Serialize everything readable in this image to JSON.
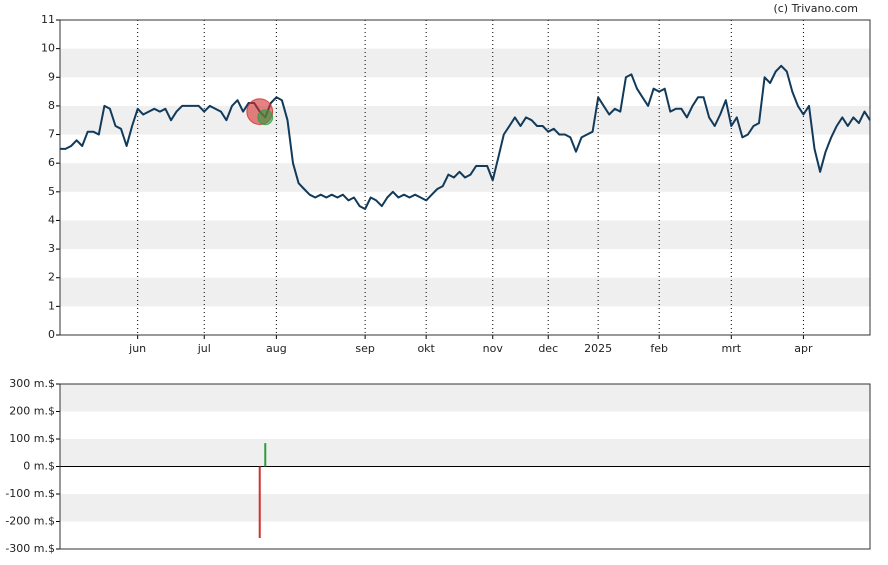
{
  "source": "(c) Trivano.com",
  "chart_data": [
    {
      "type": "line",
      "series": [
        {
          "color": "#123a5a",
          "values": [
            6.5,
            6.5,
            6.6,
            6.8,
            6.6,
            7.1,
            7.1,
            7.0,
            8.0,
            7.9,
            7.3,
            7.2,
            6.6,
            7.3,
            7.9,
            7.7,
            7.8,
            7.9,
            7.8,
            7.9,
            7.5,
            7.8,
            8.0,
            8.0,
            8.0,
            8.0,
            7.8,
            8.0,
            7.9,
            7.8,
            7.5,
            8.0,
            8.2,
            7.8,
            8.1,
            8.1,
            7.8,
            7.6,
            8.1,
            8.3,
            8.2,
            7.5,
            6.0,
            5.3,
            5.1,
            4.9,
            4.8,
            4.9,
            4.8,
            4.9,
            4.8,
            4.9,
            4.7,
            4.8,
            4.5,
            4.4,
            4.8,
            4.7,
            4.5,
            4.8,
            5.0,
            4.8,
            4.9,
            4.8,
            4.9,
            4.8,
            4.7,
            4.9,
            5.1,
            5.2,
            5.6,
            5.5,
            5.7,
            5.5,
            5.6,
            5.9,
            5.9,
            5.9,
            5.4,
            6.2,
            7.0,
            7.3,
            7.6,
            7.3,
            7.6,
            7.5,
            7.3,
            7.3,
            7.1,
            7.2,
            7.0,
            7.0,
            6.9,
            6.4,
            6.9,
            7.0,
            7.1,
            8.3,
            8.0,
            7.7,
            7.9,
            7.8,
            9.0,
            9.1,
            8.6,
            8.3,
            8.0,
            8.6,
            8.5,
            8.6,
            7.8,
            7.9,
            7.9,
            7.6,
            8.0,
            8.3,
            8.3,
            7.6,
            7.3,
            7.7,
            8.2,
            7.3,
            7.6,
            6.9,
            7.0,
            7.3,
            7.4,
            9.0,
            8.8,
            9.2,
            9.4,
            9.2,
            8.5,
            8.0,
            7.7,
            8.0,
            6.5,
            5.7,
            6.4,
            6.9,
            7.3,
            7.6,
            7.3,
            7.6,
            7.4,
            7.8,
            7.5
          ]
        }
      ],
      "xlim": [
        0,
        146
      ],
      "xticks": [
        {
          "value": 14,
          "label": "jun"
        },
        {
          "value": 26,
          "label": "jul"
        },
        {
          "value": 39,
          "label": "aug"
        },
        {
          "value": 55,
          "label": "sep"
        },
        {
          "value": 66,
          "label": "okt"
        },
        {
          "value": 78,
          "label": "nov"
        },
        {
          "value": 88,
          "label": "dec"
        },
        {
          "value": 97,
          "label": "2025"
        },
        {
          "value": 108,
          "label": "feb"
        },
        {
          "value": 121,
          "label": "mrt"
        },
        {
          "value": 134,
          "label": "apr"
        }
      ],
      "ylim": [
        0,
        11
      ],
      "yticks": [
        0,
        1,
        2,
        3,
        4,
        5,
        6,
        7,
        8,
        9,
        10,
        11
      ],
      "bands": true,
      "xgrid": "dotted"
    },
    {
      "type": "trades",
      "x": [
        36,
        37
      ],
      "values": [
        -260,
        85
      ],
      "colors": [
        "#d32f2f",
        "#2e9b3e"
      ],
      "xlim": [
        0,
        146
      ],
      "ylim": [
        -300,
        300
      ],
      "yticks": [
        {
          "value": -300,
          "label": "-300 m.$"
        },
        {
          "value": -200,
          "label": "-200 m.$"
        },
        {
          "value": -100,
          "label": "-100 m.$"
        },
        {
          "value": 0,
          "label": "0 m.$"
        },
        {
          "value": 100,
          "label": "100 m.$"
        },
        {
          "value": 200,
          "label": "200 m.$"
        },
        {
          "value": 300,
          "label": "300 m.$"
        }
      ],
      "bands": true,
      "zero_line": true
    }
  ]
}
